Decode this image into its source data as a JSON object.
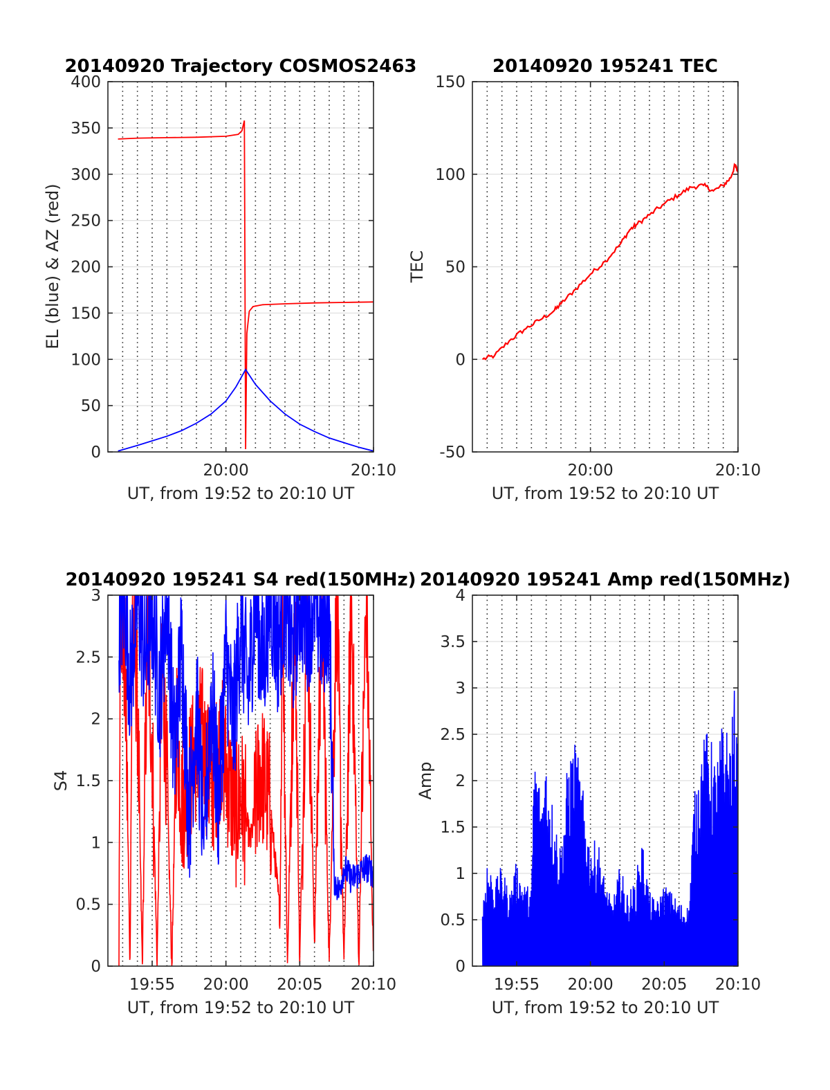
{
  "colors": {
    "red": "#ff0000",
    "blue": "#0000ff",
    "axis": "#262626",
    "grid": "#e0e0e0"
  },
  "chart_data": [
    {
      "id": "p1",
      "type": "line",
      "title": "20140920 Trajectory COSMOS2463",
      "xlabel": "UT, from 19:52 to 20:10 UT",
      "ylabel": "EL (blue) & AZ (red)",
      "xlim": [
        "19:52",
        "20:10"
      ],
      "ylim": [
        0,
        400
      ],
      "yticks": [
        0,
        50,
        100,
        150,
        200,
        250,
        300,
        350,
        400
      ],
      "yticklabels": [
        "0",
        "50",
        "100",
        "150",
        "200",
        "250",
        "300",
        "350",
        "400"
      ],
      "xticks": [
        "20:00",
        "20:10"
      ],
      "xticklabels": [
        "20:00",
        "20:10"
      ],
      "grid": true,
      "series": [
        {
          "color": "red",
          "points": [
            [
              "19:52:41",
              338
            ],
            [
              "19:54:00",
              339
            ],
            [
              "19:56:00",
              339.5
            ],
            [
              "19:58:00",
              340
            ],
            [
              "20:00:00",
              341
            ],
            [
              "20:00:50",
              343
            ],
            [
              "20:01:05",
              347
            ],
            [
              "20:01:15",
              358
            ],
            [
              "20:01:20",
              3
            ],
            [
              "20:01:25",
              128
            ],
            [
              "20:01:35",
              152
            ],
            [
              "20:01:50",
              157
            ],
            [
              "20:02:30",
              159
            ],
            [
              "20:04:00",
              160
            ],
            [
              "20:06:00",
              161
            ],
            [
              "20:08:00",
              161.5
            ],
            [
              "20:10:00",
              162
            ]
          ]
        },
        {
          "color": "blue",
          "points": [
            [
              "19:52:41",
              1
            ],
            [
              "19:54:00",
              7
            ],
            [
              "19:55:00",
              12
            ],
            [
              "19:56:00",
              17
            ],
            [
              "19:57:00",
              23
            ],
            [
              "19:58:00",
              31
            ],
            [
              "19:59:00",
              41
            ],
            [
              "20:00:00",
              55
            ],
            [
              "20:00:40",
              70
            ],
            [
              "20:01:20",
              89
            ],
            [
              "20:02:00",
              73
            ],
            [
              "20:03:00",
              55
            ],
            [
              "20:04:00",
              41
            ],
            [
              "20:05:00",
              30
            ],
            [
              "20:06:00",
              22
            ],
            [
              "20:07:00",
              15
            ],
            [
              "20:08:00",
              10
            ],
            [
              "20:09:00",
              5
            ],
            [
              "20:10:00",
              1
            ]
          ]
        }
      ]
    },
    {
      "id": "p2",
      "type": "line",
      "title": "20140920 195241 TEC",
      "xlabel": "UT, from 19:52 to 20:10 UT",
      "ylabel": "TEC",
      "xlim": [
        "19:52",
        "20:10"
      ],
      "ylim": [
        -50,
        150
      ],
      "yticks": [
        -50,
        0,
        50,
        100,
        150
      ],
      "yticklabels": [
        "-50",
        "0",
        "50",
        "100",
        "150"
      ],
      "xticks": [
        "20:00",
        "20:10"
      ],
      "xticklabels": [
        "20:00",
        "20:10"
      ],
      "grid": true,
      "series": [
        {
          "color": "red",
          "points": [
            [
              "19:52:41",
              0
            ],
            [
              "19:53:30",
              2
            ],
            [
              "19:54:30",
              10
            ],
            [
              "19:55:30",
              16
            ],
            [
              "19:56:30",
              21
            ],
            [
              "19:57:30",
              26
            ],
            [
              "19:58:00",
              30
            ],
            [
              "19:59:00",
              38
            ],
            [
              "20:00:00",
              46
            ],
            [
              "20:01:00",
              53
            ],
            [
              "20:02:00",
              62
            ],
            [
              "20:02:40",
              70
            ],
            [
              "20:03:10",
              73
            ],
            [
              "20:04:00",
              78
            ],
            [
              "20:05:00",
              84
            ],
            [
              "20:06:00",
              89
            ],
            [
              "20:06:50",
              93
            ],
            [
              "20:07:40",
              94
            ],
            [
              "20:08:20",
              91
            ],
            [
              "20:09:00",
              94
            ],
            [
              "20:09:30",
              98
            ],
            [
              "20:09:48",
              105
            ],
            [
              "20:10:00",
              101
            ]
          ]
        }
      ]
    },
    {
      "id": "p3",
      "type": "line",
      "title": "20140920 195241 S4 red(150MHz)",
      "xlabel": "UT, from 19:52 to 20:10 UT",
      "ylabel": "S4",
      "xlim": [
        "19:52",
        "20:10"
      ],
      "ylim": [
        0,
        3
      ],
      "yticks": [
        0,
        0.5,
        1,
        1.5,
        2,
        2.5,
        3
      ],
      "yticklabels": [
        "0",
        "0.5",
        "1",
        "1.5",
        "2",
        "2.5",
        "3"
      ],
      "xticks": [
        "19:55",
        "20:00",
        "20:05",
        "20:10"
      ],
      "xticklabels": [
        "19:55",
        "20:00",
        "20:05",
        "20:10"
      ],
      "grid": true,
      "series": [
        {
          "color": "red",
          "points": [
            [
              "19:52:45",
              0
            ],
            [
              "19:52:50",
              3
            ],
            [
              "19:53:10",
              2.4
            ],
            [
              "19:53:30",
              0
            ],
            [
              "19:53:40",
              3
            ],
            [
              "19:54:00",
              2.1
            ],
            [
              "19:54:20",
              0
            ],
            [
              "19:54:40",
              2.7
            ],
            [
              "19:55:00",
              1.8
            ],
            [
              "19:55:20",
              0
            ],
            [
              "19:55:40",
              2.5
            ],
            [
              "19:56:00",
              1.5
            ],
            [
              "19:56:20",
              0
            ],
            [
              "19:56:40",
              2
            ],
            [
              "19:57:00",
              1.3
            ],
            [
              "19:57:40",
              1.6
            ],
            [
              "19:58:20",
              1.9
            ],
            [
              "19:59:00",
              1.4
            ],
            [
              "19:59:40",
              1.8
            ],
            [
              "20:00:00",
              1.6
            ],
            [
              "20:00:40",
              1.2
            ],
            [
              "20:01:00",
              1.4
            ],
            [
              "20:01:40",
              1
            ],
            [
              "20:02:20",
              1.6
            ],
            [
              "20:03:00",
              1.3
            ],
            [
              "20:03:40",
              0.4
            ],
            [
              "20:03:50",
              3
            ],
            [
              "20:04:10",
              0
            ],
            [
              "20:04:40",
              3
            ],
            [
              "20:05:00",
              0
            ],
            [
              "20:05:30",
              3
            ],
            [
              "20:06:00",
              0.2
            ],
            [
              "20:06:30",
              3
            ],
            [
              "20:07:00",
              0
            ],
            [
              "20:07:30",
              3
            ],
            [
              "20:08:00",
              0
            ],
            [
              "20:08:30",
              3
            ],
            [
              "20:09:00",
              0
            ],
            [
              "20:09:30",
              3
            ],
            [
              "20:10:00",
              0
            ]
          ]
        },
        {
          "color": "blue",
          "points": [
            [
              "19:52:45",
              2.8
            ],
            [
              "19:53:10",
              3
            ],
            [
              "19:53:30",
              2.3
            ],
            [
              "19:54:00",
              3
            ],
            [
              "19:54:30",
              2.5
            ],
            [
              "19:55:00",
              2.9
            ],
            [
              "19:55:30",
              2.2
            ],
            [
              "19:56:00",
              3
            ],
            [
              "19:56:30",
              1.7
            ],
            [
              "19:57:00",
              2.6
            ],
            [
              "19:57:30",
              1.2
            ],
            [
              "19:58:00",
              2.1
            ],
            [
              "19:58:30",
              1
            ],
            [
              "19:59:00",
              2.2
            ],
            [
              "19:59:30",
              1.3
            ],
            [
              "20:00:00",
              2.5
            ],
            [
              "20:00:30",
              1.9
            ],
            [
              "20:01:00",
              2.8
            ],
            [
              "20:01:30",
              2.2
            ],
            [
              "20:02:00",
              3
            ],
            [
              "20:02:30",
              2.4
            ],
            [
              "20:03:00",
              3
            ],
            [
              "20:03:30",
              2.6
            ],
            [
              "20:04:00",
              3
            ],
            [
              "20:04:30",
              2.5
            ],
            [
              "20:05:00",
              3
            ],
            [
              "20:05:30",
              2.8
            ],
            [
              "20:06:00",
              3
            ],
            [
              "20:06:30",
              2.7
            ],
            [
              "20:07:00",
              2.9
            ],
            [
              "20:07:20",
              0.7
            ],
            [
              "20:07:40",
              0.6
            ],
            [
              "20:08:00",
              0.8
            ],
            [
              "20:08:30",
              0.7
            ],
            [
              "20:09:00",
              0.75
            ],
            [
              "20:09:30",
              0.8
            ],
            [
              "20:10:00",
              0.75
            ]
          ]
        }
      ]
    },
    {
      "id": "p4",
      "type": "line",
      "title": "20140920 195241 Amp red(150MHz)",
      "xlabel": "UT, from 19:52 to 20:10 UT",
      "ylabel": "Amp",
      "xlim": [
        "19:52",
        "20:10"
      ],
      "ylim": [
        0,
        4
      ],
      "yticks": [
        0,
        0.5,
        1,
        1.5,
        2,
        2.5,
        3,
        3.5,
        4
      ],
      "yticklabels": [
        "0",
        "0.5",
        "1",
        "1.5",
        "2",
        "2.5",
        "3",
        "3.5",
        "4"
      ],
      "xticks": [
        "19:55",
        "20:00",
        "20:05",
        "20:10"
      ],
      "xticklabels": [
        "19:55",
        "20:00",
        "20:05",
        "20:10"
      ],
      "grid": true,
      "series": [
        {
          "color": "blue",
          "points": [
            [
              "19:52:41",
              0.7
            ],
            [
              "19:53:00",
              1.2
            ],
            [
              "19:53:30",
              0.9
            ],
            [
              "19:54:00",
              1.1
            ],
            [
              "19:54:30",
              0.8
            ],
            [
              "19:55:00",
              1.15
            ],
            [
              "19:55:30",
              0.9
            ],
            [
              "19:56:00",
              0.85
            ],
            [
              "19:56:10",
              2.4
            ],
            [
              "19:56:40",
              1.9
            ],
            [
              "19:57:00",
              2.3
            ],
            [
              "19:57:30",
              1.7
            ],
            [
              "19:58:00",
              1.3
            ],
            [
              "19:58:30",
              2.3
            ],
            [
              "19:59:00",
              2.45
            ],
            [
              "19:59:30",
              1.9
            ],
            [
              "20:00:00",
              1.3
            ],
            [
              "20:00:30",
              1.4
            ],
            [
              "20:01:00",
              0.9
            ],
            [
              "20:01:30",
              0.7
            ],
            [
              "20:02:00",
              1.1
            ],
            [
              "20:02:30",
              0.8
            ],
            [
              "20:03:00",
              0.9
            ],
            [
              "20:03:30",
              1.4
            ],
            [
              "20:04:00",
              0.8
            ],
            [
              "20:04:30",
              0.7
            ],
            [
              "20:05:00",
              0.9
            ],
            [
              "20:05:30",
              0.8
            ],
            [
              "20:06:00",
              0.7
            ],
            [
              "20:06:40",
              0.65
            ],
            [
              "20:07:00",
              1.8
            ],
            [
              "20:07:30",
              2.4
            ],
            [
              "20:08:00",
              2.6
            ],
            [
              "20:08:30",
              2.2
            ],
            [
              "20:09:00",
              2.7
            ],
            [
              "20:09:30",
              2.5
            ],
            [
              "20:09:45",
              3
            ],
            [
              "20:10:00",
              2.4
            ]
          ]
        }
      ]
    }
  ]
}
